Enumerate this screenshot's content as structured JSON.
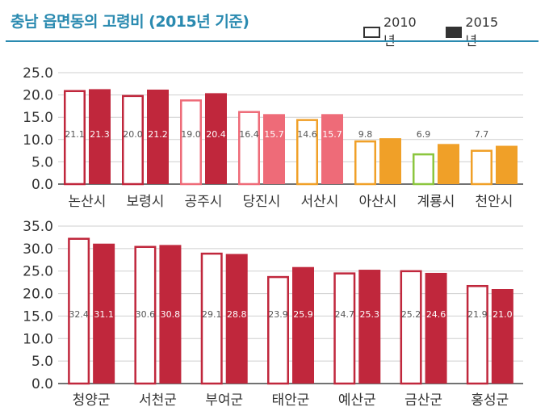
{
  "title": "충남 읍면동의 고령비 (2015년 기준)",
  "legend": {
    "item_2010": "2010년",
    "item_2015": "2015년"
  },
  "colors": {
    "title": "#2a8ab0",
    "rule": "#2a8ab0",
    "crimson": "#c0273c",
    "pink": "#ee6b78",
    "orange": "#f0a028",
    "green": "#8cc63f"
  },
  "chart_data": [
    {
      "type": "bar",
      "title": "",
      "xlabel": "",
      "ylabel": "",
      "ylim": [
        0,
        25
      ],
      "yticks": [
        "0.0",
        "5.0",
        "10.0",
        "15.0",
        "20.0",
        "25.0"
      ],
      "grid": true,
      "categories": [
        "논산시",
        "보령시",
        "공주시",
        "당진시",
        "서산시",
        "아산시",
        "계룡시",
        "천안시"
      ],
      "category_colors": [
        "#c0273c",
        "#c0273c",
        "#ee6b78",
        "#ee6b78",
        "#f0a028",
        "#f0a028",
        "#8cc63f",
        "#f0a028"
      ],
      "category_colors_2015": [
        "#c0273c",
        "#c0273c",
        "#c0273c",
        "#ee6b78",
        "#ee6b78",
        "#f0a028",
        "#f0a028",
        "#f0a028"
      ],
      "series": [
        {
          "name": "2010년",
          "style": "outline",
          "values": [
            21.1,
            20.0,
            19.0,
            16.4,
            14.6,
            9.8,
            6.9,
            7.7
          ]
        },
        {
          "name": "2015년",
          "style": "filled",
          "values": [
            21.3,
            21.2,
            20.4,
            15.7,
            15.7,
            10.3,
            9.0,
            8.6
          ]
        }
      ]
    },
    {
      "type": "bar",
      "title": "",
      "xlabel": "",
      "ylabel": "",
      "ylim": [
        0,
        35
      ],
      "yticks": [
        "0.0",
        "5.0",
        "10.0",
        "15.0",
        "20.0",
        "25.0",
        "30.0",
        "35.0"
      ],
      "grid": true,
      "categories": [
        "청양군",
        "서천군",
        "부여군",
        "태안군",
        "예산군",
        "금산군",
        "홍성군"
      ],
      "category_colors": [
        "#c0273c",
        "#c0273c",
        "#c0273c",
        "#c0273c",
        "#c0273c",
        "#c0273c",
        "#c0273c"
      ],
      "category_colors_2015": [
        "#c0273c",
        "#c0273c",
        "#c0273c",
        "#c0273c",
        "#c0273c",
        "#c0273c",
        "#c0273c"
      ],
      "series": [
        {
          "name": "2010년",
          "style": "outline",
          "values": [
            32.4,
            30.6,
            29.1,
            23.9,
            24.7,
            25.2,
            21.9
          ]
        },
        {
          "name": "2015년",
          "style": "filled",
          "values": [
            31.1,
            30.8,
            28.8,
            25.9,
            25.3,
            24.6,
            21.0
          ]
        }
      ]
    }
  ]
}
